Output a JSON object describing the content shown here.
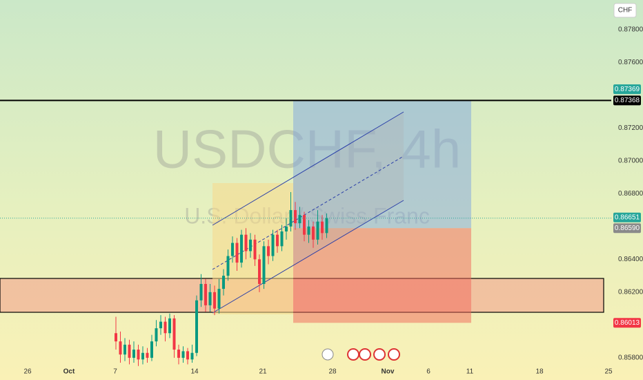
{
  "chart_data": {
    "type": "candlestick",
    "title": "USDCHF, 4h",
    "subtitle": "U.S. Dollar / Swiss Franc",
    "currency": "CHF",
    "x_labels": [
      "26",
      "Oct",
      "7",
      "14",
      "21",
      "28",
      "Nov",
      "6",
      "11",
      "18",
      "25"
    ],
    "open": [
      0.8595,
      0.859,
      0.8582,
      0.8588,
      0.858,
      0.8585,
      0.8579,
      0.8583,
      0.858,
      0.859,
      0.8598,
      0.8602,
      0.8595,
      0.8604,
      0.8585,
      0.858,
      0.8584,
      0.8579,
      0.8583,
      0.8615,
      0.8625,
      0.8612,
      0.862,
      0.861,
      0.8622,
      0.863,
      0.8642,
      0.865,
      0.8638,
      0.8655,
      0.8645,
      0.8652,
      0.864,
      0.8625,
      0.8648,
      0.8642,
      0.8655,
      0.8648,
      0.8657,
      0.866,
      0.867,
      0.8662,
      0.8667,
      0.8655,
      0.866,
      0.8652,
      0.8663,
      0.8656
    ],
    "high": [
      0.8605,
      0.8596,
      0.8592,
      0.8591,
      0.859,
      0.8588,
      0.8587,
      0.8586,
      0.8594,
      0.8603,
      0.8606,
      0.8605,
      0.8607,
      0.8606,
      0.8588,
      0.8587,
      0.8586,
      0.8588,
      0.8618,
      0.8631,
      0.8628,
      0.8625,
      0.8624,
      0.8628,
      0.8634,
      0.8646,
      0.8654,
      0.8653,
      0.8658,
      0.8659,
      0.8656,
      0.8655,
      0.8643,
      0.8651,
      0.8652,
      0.8658,
      0.8658,
      0.8661,
      0.8665,
      0.8681,
      0.8675,
      0.8672,
      0.8669,
      0.8664,
      0.8663,
      0.867,
      0.8667,
      0.8668
    ],
    "low": [
      0.8585,
      0.8577,
      0.8578,
      0.8576,
      0.8577,
      0.8575,
      0.8576,
      0.8577,
      0.8578,
      0.8587,
      0.8594,
      0.859,
      0.8592,
      0.858,
      0.8576,
      0.8577,
      0.8576,
      0.8577,
      0.8581,
      0.8611,
      0.8608,
      0.8608,
      0.8606,
      0.8607,
      0.8618,
      0.8627,
      0.8638,
      0.8633,
      0.8635,
      0.864,
      0.8641,
      0.8636,
      0.862,
      0.8622,
      0.8637,
      0.8639,
      0.8644,
      0.8645,
      0.8652,
      0.8657,
      0.8658,
      0.8659,
      0.8651,
      0.865,
      0.8647,
      0.8649,
      0.8652,
      0.8653
    ],
    "close": [
      0.859,
      0.8582,
      0.8588,
      0.858,
      0.8585,
      0.8579,
      0.8583,
      0.858,
      0.859,
      0.8598,
      0.8602,
      0.8595,
      0.8604,
      0.8585,
      0.858,
      0.8584,
      0.8579,
      0.8583,
      0.8615,
      0.8625,
      0.8612,
      0.862,
      0.861,
      0.8622,
      0.863,
      0.8642,
      0.865,
      0.8638,
      0.8655,
      0.8645,
      0.8652,
      0.864,
      0.8625,
      0.8648,
      0.8642,
      0.8655,
      0.8648,
      0.8657,
      0.866,
      0.867,
      0.8662,
      0.8667,
      0.8655,
      0.866,
      0.8652,
      0.8663,
      0.8656,
      0.86651
    ],
    "up_color": "#089981",
    "down_color": "#f23645",
    "ylim": [
      0.8577,
      0.8798
    ],
    "yticks": [
      {
        "value": 0.878,
        "label": "0.87800"
      },
      {
        "value": 0.876,
        "label": "0.87600"
      },
      {
        "value": 0.872,
        "label": "0.87200"
      },
      {
        "value": 0.87,
        "label": "0.87000"
      },
      {
        "value": 0.868,
        "label": "0.86800"
      },
      {
        "value": 0.864,
        "label": "0.86400"
      },
      {
        "value": 0.862,
        "label": "0.86200"
      },
      {
        "value": 0.858,
        "label": "0.85800"
      }
    ],
    "current_price": 0.86651,
    "current_color": "#26a69a",
    "level": 0.87368,
    "level_color": "#000000",
    "position": {
      "target": 0.87369,
      "entry": {
        "value": 0.8659,
        "label": "0.86590"
      },
      "stop": 0.86013,
      "target_color": "#26a69a",
      "entry_color": "#8a8a8a",
      "stop_color": "#f23645"
    }
  }
}
